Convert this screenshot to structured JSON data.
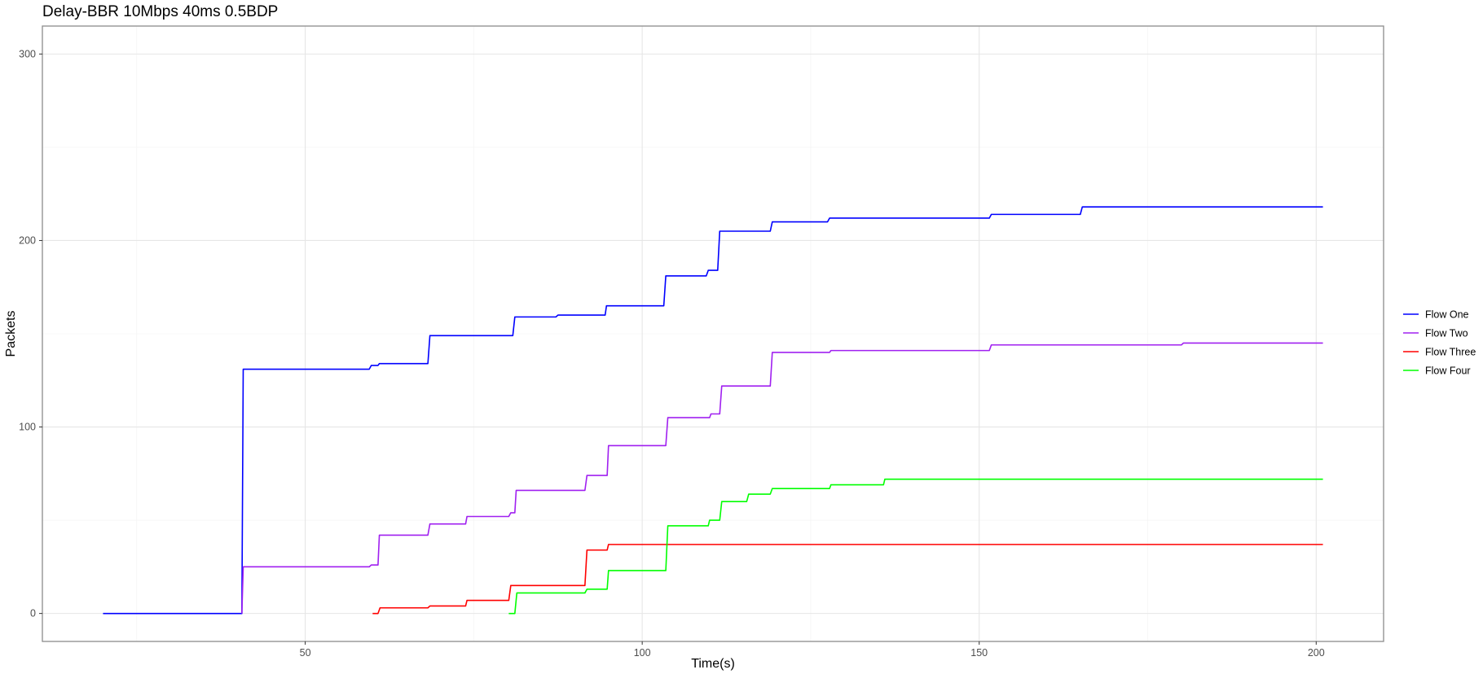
{
  "chart_data": {
    "type": "line",
    "title": "Delay-BBR 10Mbps 40ms 0.5BDP",
    "xlabel": "Time(s)",
    "ylabel": "Packets",
    "xlim": [
      11,
      210
    ],
    "ylim": [
      -15,
      315
    ],
    "x_ticks": [
      50,
      100,
      150,
      200
    ],
    "y_ticks": [
      0,
      100,
      200,
      300
    ],
    "grid": true,
    "legend_position": "right",
    "series": [
      {
        "name": "Flow One",
        "color": "#0000ff",
        "points": [
          [
            20.0,
            0
          ],
          [
            40.6,
            0
          ],
          [
            40.8,
            131
          ],
          [
            59.5,
            131
          ],
          [
            59.8,
            133
          ],
          [
            60.8,
            133
          ],
          [
            61.0,
            134
          ],
          [
            68.2,
            134
          ],
          [
            68.5,
            149
          ],
          [
            80.8,
            149
          ],
          [
            81.1,
            159
          ],
          [
            87.2,
            159
          ],
          [
            87.5,
            160
          ],
          [
            94.5,
            160
          ],
          [
            94.7,
            165
          ],
          [
            103.2,
            165
          ],
          [
            103.5,
            181
          ],
          [
            109.5,
            181
          ],
          [
            109.8,
            184
          ],
          [
            111.2,
            184
          ],
          [
            111.5,
            205
          ],
          [
            119.0,
            205
          ],
          [
            119.3,
            210
          ],
          [
            127.5,
            210
          ],
          [
            127.8,
            212
          ],
          [
            151.5,
            212
          ],
          [
            151.8,
            214
          ],
          [
            165.0,
            214
          ],
          [
            165.3,
            218
          ],
          [
            201.0,
            218
          ]
        ]
      },
      {
        "name": "Flow Two",
        "color": "#a020f0",
        "points": [
          [
            40.6,
            0
          ],
          [
            40.8,
            25
          ],
          [
            59.5,
            25
          ],
          [
            59.8,
            26
          ],
          [
            60.8,
            26
          ],
          [
            61.0,
            42
          ],
          [
            68.2,
            42
          ],
          [
            68.5,
            48
          ],
          [
            73.8,
            48
          ],
          [
            74.0,
            52
          ],
          [
            80.2,
            52
          ],
          [
            80.5,
            54
          ],
          [
            81.1,
            54
          ],
          [
            81.3,
            66
          ],
          [
            91.5,
            66
          ],
          [
            91.8,
            74
          ],
          [
            94.8,
            74
          ],
          [
            95.0,
            90
          ],
          [
            103.5,
            90
          ],
          [
            103.8,
            105
          ],
          [
            110.0,
            105
          ],
          [
            110.2,
            107
          ],
          [
            111.5,
            107
          ],
          [
            111.8,
            122
          ],
          [
            119.0,
            122
          ],
          [
            119.3,
            140
          ],
          [
            127.8,
            140
          ],
          [
            128.0,
            141
          ],
          [
            151.5,
            141
          ],
          [
            151.8,
            144
          ],
          [
            180.0,
            144
          ],
          [
            180.3,
            145
          ],
          [
            201.0,
            145
          ]
        ]
      },
      {
        "name": "Flow Three",
        "color": "#ff0000",
        "points": [
          [
            60.0,
            0
          ],
          [
            60.8,
            0
          ],
          [
            61.1,
            3
          ],
          [
            68.2,
            3
          ],
          [
            68.5,
            4
          ],
          [
            73.8,
            4
          ],
          [
            74.0,
            7
          ],
          [
            80.2,
            7
          ],
          [
            80.5,
            15
          ],
          [
            91.5,
            15
          ],
          [
            91.8,
            34
          ],
          [
            94.8,
            34
          ],
          [
            95.0,
            37
          ],
          [
            201.0,
            37
          ]
        ]
      },
      {
        "name": "Flow Four",
        "color": "#00ff00",
        "points": [
          [
            80.2,
            0
          ],
          [
            81.1,
            0
          ],
          [
            81.4,
            11
          ],
          [
            91.5,
            11
          ],
          [
            91.8,
            13
          ],
          [
            94.8,
            13
          ],
          [
            95.0,
            23
          ],
          [
            103.5,
            23
          ],
          [
            103.8,
            47
          ],
          [
            109.8,
            47
          ],
          [
            110.0,
            50
          ],
          [
            111.5,
            50
          ],
          [
            111.8,
            60
          ],
          [
            115.5,
            60
          ],
          [
            115.8,
            64
          ],
          [
            119.0,
            64
          ],
          [
            119.3,
            67
          ],
          [
            127.8,
            67
          ],
          [
            128.0,
            69
          ],
          [
            135.8,
            69
          ],
          [
            136.0,
            72
          ],
          [
            201.0,
            72
          ]
        ]
      }
    ]
  }
}
